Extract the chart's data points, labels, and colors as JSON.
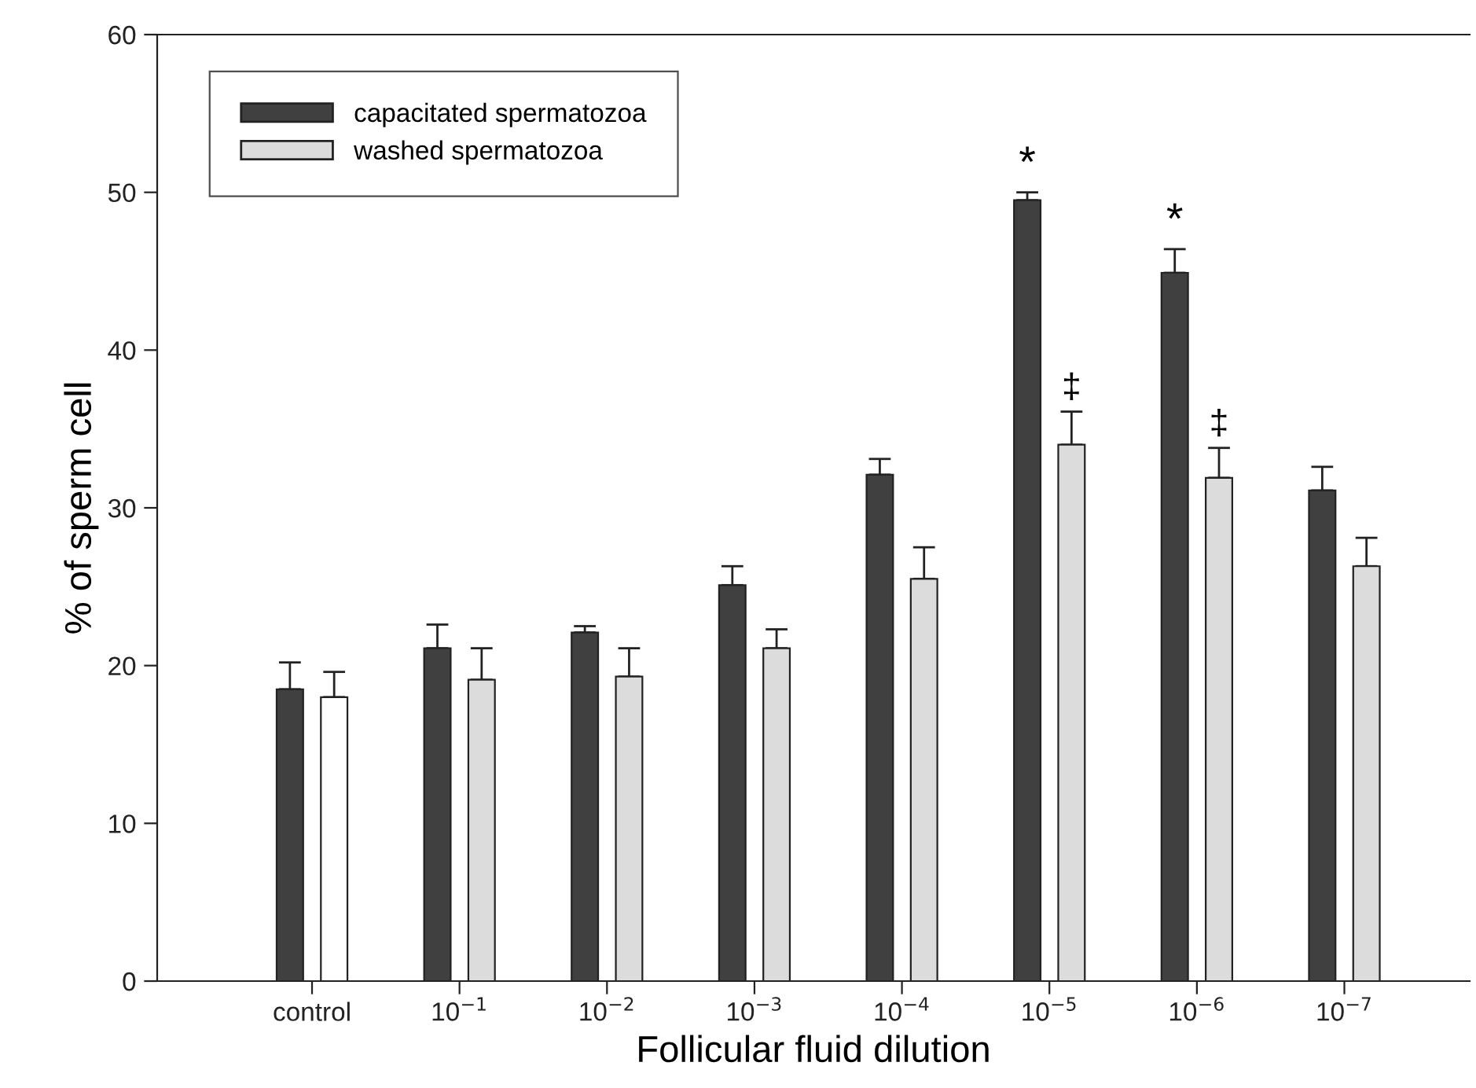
{
  "chart_data": {
    "type": "bar",
    "xlabel": "Follicular fluid dilution",
    "ylabel": "% of sperm cell",
    "categories": [
      "control",
      "10$^{−1}$",
      "10$^{−2}$",
      "10$^{−3}$",
      "10$^{−4}$",
      "10$^{−5}$",
      "10$^{−6}$",
      "10$^{−7}$"
    ],
    "series": [
      {
        "name": "capacitated spermatozoa",
        "color": "#404040",
        "values": [
          18.5,
          21.1,
          22.1,
          25.1,
          32.1,
          49.5,
          44.9,
          31.1
        ],
        "value_labels": [
          null,
          null,
          null,
          null,
          null,
          "*",
          "*",
          null
        ],
        "errors": [
          [
            18.5,
            20.2
          ],
          [
            21.1,
            22.6
          ],
          [
            22.1,
            22.5
          ],
          [
            25.1,
            26.3
          ],
          [
            32.1,
            33.1
          ],
          [
            49.5,
            50.0
          ],
          [
            44.9,
            46.4
          ],
          [
            31.1,
            32.6
          ]
        ]
      },
      {
        "name": "washed spermatozoa",
        "color": "#dcdcdc",
        "colors": [
          "#ffffff",
          "#dcdcdc",
          "#dcdcdc",
          "#dcdcdc",
          "#dcdcdc",
          "#dcdcdc",
          "#dcdcdc",
          "#dcdcdc"
        ],
        "values": [
          18.0,
          19.1,
          19.3,
          21.1,
          25.5,
          34.0,
          31.9,
          26.3
        ],
        "value_labels": [
          null,
          null,
          null,
          null,
          null,
          "‡",
          "‡",
          null
        ],
        "errors": [
          [
            18.0,
            19.6
          ],
          [
            19.1,
            21.1
          ],
          [
            19.3,
            21.1
          ],
          [
            21.1,
            22.3
          ],
          [
            25.5,
            27.5
          ],
          [
            34.0,
            36.1
          ],
          [
            31.9,
            33.8
          ],
          [
            26.3,
            28.1
          ]
        ]
      }
    ],
    "ylim": [
      0,
      60
    ],
    "yticks": [
      0,
      10,
      20,
      30,
      40,
      50,
      60
    ],
    "grid": false,
    "legend": "top left"
  }
}
